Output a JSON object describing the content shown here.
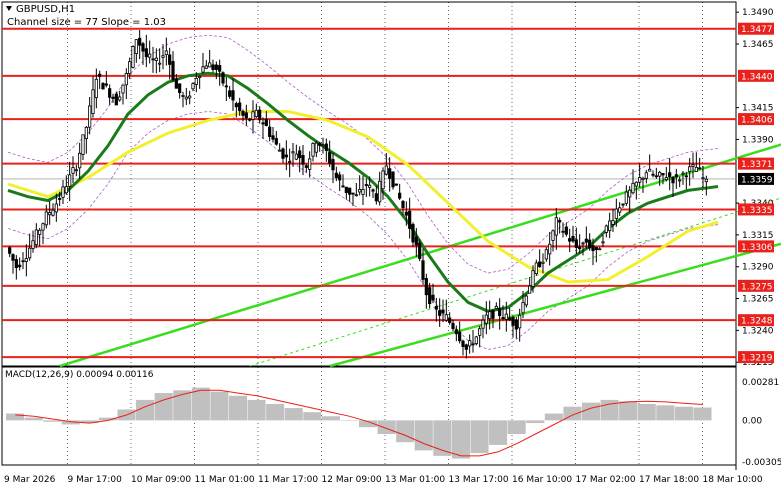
{
  "header": {
    "symbol_label": "GBPUSD,H1",
    "channel_label": "Channel size = 77 Slope = 1.03",
    "macd_label": "MACD(12,26,9) 0.00094 0.00116"
  },
  "colors": {
    "background": "#ffffff",
    "candle": "#000000",
    "level_line": "#e8211c",
    "ma_fast": "#1a7a1a",
    "ma_slow": "#f2ef2e",
    "channel": "#39dd1e",
    "bollinger": "#b25cc9",
    "macd_hist": "#c0c0c0",
    "macd_signal": "#e8211c"
  },
  "chart_data": [
    {
      "type": "candlestick",
      "title": "GBPUSD,H1",
      "annotation": "Channel size = 77 Slope = 1.03",
      "y_tick_labels": [
        "1.3490",
        "1.3465",
        "1.3415",
        "1.3390",
        "1.3340",
        "1.3315",
        "1.3290",
        "1.3265",
        "1.3240",
        "1.3215"
      ],
      "x_tick_labels": [
        "9 Mar 2026",
        "9 Mar 17:00",
        "10 Mar 09:00",
        "11 Mar 01:00",
        "11 Mar 17:00",
        "12 Mar 09:00",
        "13 Mar 01:00",
        "13 Mar 17:00",
        "16 Mar 10:00",
        "17 Mar 02:00",
        "17 Mar 18:00",
        "18 Mar 10:00"
      ],
      "ylim": [
        1.3212,
        1.3498
      ],
      "current_price": "1.3359",
      "levels": [
        "1.3477",
        "1.3440",
        "1.3406",
        "1.3371",
        "1.3335",
        "1.3306",
        "1.3275",
        "1.3248",
        "1.3219"
      ],
      "series": [
        {
          "role": "price",
          "x": [
            0,
            10,
            20,
            30,
            40,
            50,
            60,
            70,
            80,
            90,
            100,
            110,
            120,
            130,
            140,
            150,
            160,
            170,
            180,
            190,
            200,
            210,
            220,
            230,
            240,
            250,
            260,
            270,
            280,
            290,
            300,
            310,
            320,
            330,
            340,
            350,
            360,
            370,
            380,
            390,
            400,
            410,
            420,
            430,
            440,
            450,
            460,
            470,
            480,
            490,
            500,
            510,
            520,
            530,
            540,
            550,
            560,
            570,
            580,
            590,
            600,
            610,
            620,
            630,
            640,
            650,
            660,
            670,
            680,
            690,
            700,
            710
          ],
          "y": [
            1.3305,
            1.329,
            1.33,
            1.3315,
            1.333,
            1.334,
            1.3355,
            1.337,
            1.34,
            1.344,
            1.343,
            1.342,
            1.344,
            1.347,
            1.3455,
            1.345,
            1.346,
            1.343,
            1.342,
            1.344,
            1.345,
            1.3445,
            1.343,
            1.3415,
            1.3405,
            1.341,
            1.34,
            1.3385,
            1.3375,
            1.338,
            1.337,
            1.339,
            1.338,
            1.336,
            1.335,
            1.3345,
            1.3355,
            1.3345,
            1.337,
            1.335,
            1.333,
            1.3305,
            1.327,
            1.3255,
            1.325,
            1.324,
            1.3225,
            1.3235,
            1.325,
            1.3255,
            1.325,
            1.3245,
            1.327,
            1.329,
            1.33,
            1.3325,
            1.3315,
            1.3305,
            1.331,
            1.33,
            1.332,
            1.3335,
            1.3345,
            1.3355,
            1.3365,
            1.336,
            1.3362,
            1.3358,
            1.3365,
            1.3368,
            1.3355,
            1.3359
          ]
        },
        {
          "role": "ma_fast",
          "x": [
            0,
            20,
            40,
            60,
            80,
            100,
            120,
            140,
            160,
            180,
            200,
            220,
            240,
            260,
            280,
            300,
            320,
            340,
            360,
            380,
            400,
            420,
            440,
            460,
            480,
            500,
            520,
            540,
            560,
            580,
            600,
            620,
            640,
            660,
            680,
            700,
            710
          ],
          "y": [
            1.335,
            1.3345,
            1.3342,
            1.335,
            1.3365,
            1.3385,
            1.341,
            1.3425,
            1.3435,
            1.344,
            1.3442,
            1.344,
            1.343,
            1.3418,
            1.3405,
            1.3393,
            1.3382,
            1.3372,
            1.336,
            1.3345,
            1.3325,
            1.33,
            1.3278,
            1.3262,
            1.3255,
            1.3258,
            1.327,
            1.3285,
            1.3295,
            1.3305,
            1.332,
            1.3332,
            1.334,
            1.3345,
            1.335,
            1.3352,
            1.3353
          ]
        },
        {
          "role": "ma_slow",
          "x": [
            0,
            40,
            80,
            120,
            160,
            200,
            240,
            280,
            320,
            360,
            400,
            440,
            480,
            520,
            560,
            600,
            640,
            680,
            710
          ],
          "y": [
            1.3355,
            1.3345,
            1.336,
            1.338,
            1.3395,
            1.3405,
            1.3412,
            1.3412,
            1.3405,
            1.3392,
            1.337,
            1.334,
            1.331,
            1.329,
            1.3278,
            1.328,
            1.3298,
            1.3318,
            1.3325
          ]
        },
        {
          "role": "macd_histogram",
          "values": [
            0.0005,
            0.0002,
            -0.0001,
            -0.0003,
            -0.0002,
            0.0002,
            0.0008,
            0.0015,
            0.002,
            0.0022,
            0.0024,
            0.0021,
            0.0018,
            0.0015,
            0.0012,
            0.0009,
            0.0006,
            0.0003,
            0.0,
            -0.0005,
            -0.001,
            -0.0016,
            -0.0022,
            -0.0026,
            -0.0028,
            -0.0024,
            -0.0018,
            -0.001,
            -0.0002,
            0.0005,
            0.001,
            0.0013,
            0.0015,
            0.0014,
            0.0012,
            0.0011,
            0.001,
            0.00094
          ]
        },
        {
          "role": "macd_signal",
          "values": [
            0.0004,
            0.0003,
            0.0001,
            -0.0001,
            -0.0002,
            0.0,
            0.0004,
            0.001,
            0.0015,
            0.0019,
            0.0022,
            0.0022,
            0.002,
            0.0018,
            0.0015,
            0.0012,
            0.0009,
            0.0006,
            0.0003,
            -0.0001,
            -0.0006,
            -0.0011,
            -0.0017,
            -0.0022,
            -0.0026,
            -0.0026,
            -0.0023,
            -0.0017,
            -0.001,
            -0.0003,
            0.0004,
            0.0009,
            0.0012,
            0.00135,
            0.0014,
            0.00135,
            0.00125,
            0.00116
          ]
        }
      ]
    },
    {
      "type": "line",
      "title": "MACD(12,26,9) 0.00094 0.00116",
      "y_tick_labels": [
        "0.00281",
        "0.00",
        "-0.00305"
      ],
      "ylim": [
        -0.00305,
        0.00281
      ]
    }
  ]
}
